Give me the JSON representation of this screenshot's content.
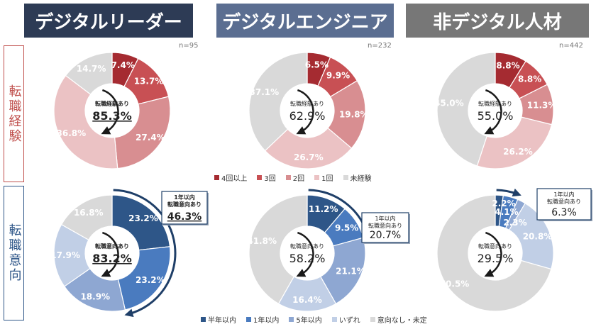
{
  "headers": [
    {
      "label": "デジタルリーダー",
      "color": "#2d3b55"
    },
    {
      "label": "デジタルエンジニア",
      "color": "#5b6e91"
    },
    {
      "label": "非デジタル人材",
      "color": "#777777"
    }
  ],
  "row_labels": [
    {
      "label": "転職経験",
      "color": "#c0504d"
    },
    {
      "label": "転職意向",
      "color": "#2e5688"
    }
  ],
  "n_labels": [
    "n=95",
    "n=232",
    "n=442"
  ],
  "legend_experience": [
    "4回以上",
    "3回",
    "2回",
    "1回",
    "未経験"
  ],
  "legend_intention": [
    "半年以内",
    "1年以内",
    "5年以内",
    "いずれ",
    "意向なし・未定"
  ],
  "colors": {
    "experience": [
      "#a52b31",
      "#c85054",
      "#d88e91",
      "#ebc2c4",
      "#d9d9d9"
    ],
    "intention": [
      "#2e5688",
      "#4a7bbf",
      "#8ea7d2",
      "#c1cfe6",
      "#d9d9d9"
    ],
    "arrow": "#1f3f68"
  },
  "callouts": [
    {
      "title1": "1年以内",
      "title2": "転職意向あり",
      "value": "46.3%"
    },
    {
      "title1": "1年以内",
      "title2": "転職意向あり",
      "value": "20.7%"
    },
    {
      "title1": "1年以内",
      "title2": "転職意向あり",
      "value": "6.3%"
    }
  ],
  "chart_data": [
    {
      "type": "pie",
      "title": "デジタルリーダー 転職経験",
      "n": "n=95",
      "categories": [
        "4回以上",
        "3回",
        "2回",
        "1回",
        "未経験"
      ],
      "values": [
        7.4,
        13.7,
        27.4,
        36.8,
        14.7
      ],
      "center_label": "転職経験あり",
      "center_value": "85.3%"
    },
    {
      "type": "pie",
      "title": "デジタルエンジニア 転職経験",
      "n": "n=232",
      "categories": [
        "4回以上",
        "3回",
        "2回",
        "1回",
        "未経験"
      ],
      "values": [
        6.5,
        9.9,
        19.8,
        26.7,
        37.1
      ],
      "center_label": "転職経験あり",
      "center_value": "62.9%"
    },
    {
      "type": "pie",
      "title": "非デジタル人材 転職経験",
      "n": "n=442",
      "categories": [
        "4回以上",
        "3回",
        "2回",
        "1回",
        "未経験"
      ],
      "values": [
        8.8,
        8.8,
        11.3,
        26.2,
        45.0
      ],
      "center_label": "転職経験あり",
      "center_value": "55.0%"
    },
    {
      "type": "pie",
      "title": "デジタルリーダー 転職意向",
      "categories": [
        "半年以内",
        "1年以内",
        "5年以内",
        "いずれ",
        "意向なし・未定"
      ],
      "values": [
        23.2,
        23.2,
        18.9,
        17.9,
        16.8
      ],
      "center_label": "転職意向あり",
      "center_value": "83.2%"
    },
    {
      "type": "pie",
      "title": "デジタルエンジニア 転職意向",
      "categories": [
        "半年以内",
        "1年以内",
        "5年以内",
        "いずれ",
        "意向なし・未定"
      ],
      "values": [
        11.2,
        9.5,
        21.1,
        16.4,
        41.8
      ],
      "center_label": "転職意向あり",
      "center_value": "58.2%"
    },
    {
      "type": "pie",
      "title": "非デジタル人材 転職意向",
      "categories": [
        "半年以内",
        "1年以内",
        "5年以内",
        "いずれ",
        "意向なし・未定"
      ],
      "values": [
        2.2,
        4.1,
        2.3,
        20.8,
        70.5
      ],
      "center_label": "転職意向あり",
      "center_value": "29.5%"
    }
  ]
}
